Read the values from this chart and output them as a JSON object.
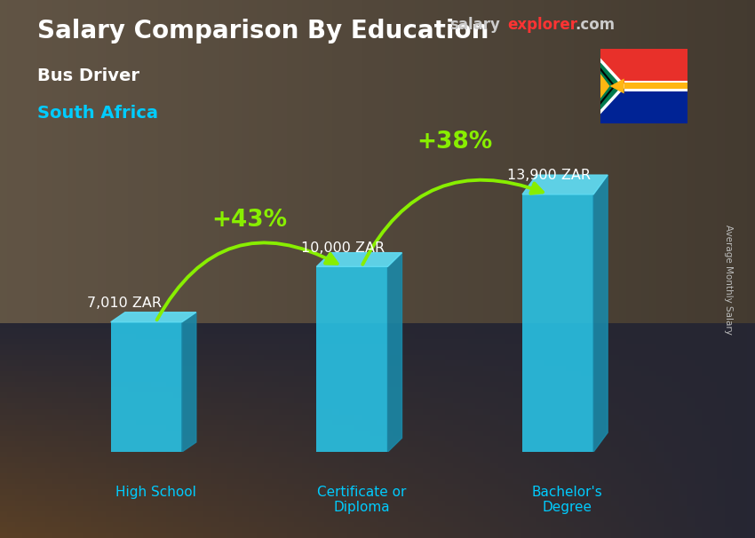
{
  "title_main": "Salary Comparison By Education",
  "subtitle1": "Bus Driver",
  "subtitle2": "South Africa",
  "categories": [
    "High School",
    "Certificate or\nDiploma",
    "Bachelor's\nDegree"
  ],
  "values": [
    7010,
    10000,
    13900
  ],
  "value_labels": [
    "7,010 ZAR",
    "10,000 ZAR",
    "13,900 ZAR"
  ],
  "pct_labels": [
    "+43%",
    "+38%"
  ],
  "bar_color_face": "#29c5e8",
  "bar_color_side": "#1a8aaa",
  "bar_color_top": "#60ddf5",
  "bg_top_color": "#5a4a3a",
  "bg_bottom_color": "#1a1a2a",
  "title_color": "#ffffff",
  "subtitle1_color": "#ffffff",
  "subtitle2_color": "#00ccff",
  "cat_color": "#00ccff",
  "value_color": "#ffffff",
  "pct_color": "#88ee00",
  "arrow_color": "#88ee00",
  "right_label": "Average Monthly Salary",
  "bar_width": 0.38,
  "ylim_max": 18000,
  "bar_positions": [
    1.0,
    2.1,
    3.2
  ]
}
